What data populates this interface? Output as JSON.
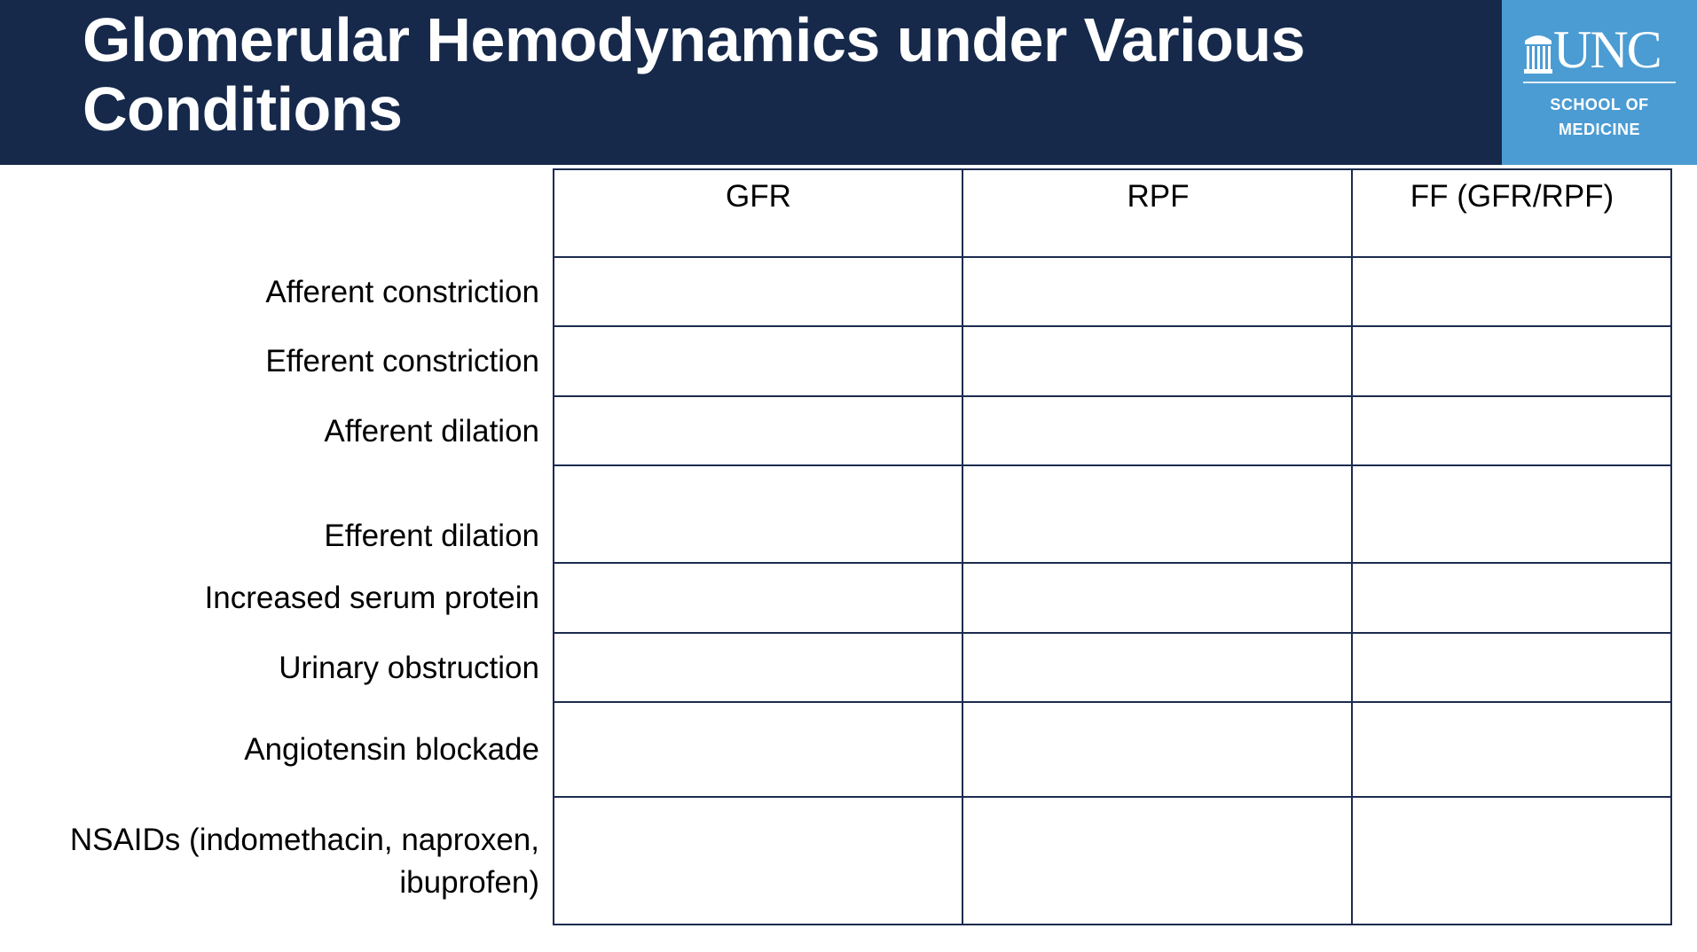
{
  "header": {
    "title_line1": "Glomerular Hemodynamics under Various",
    "title_line2": "Conditions",
    "background_color": "#16294b"
  },
  "logo": {
    "name": "UNC",
    "sub_line1": "SCHOOL OF",
    "sub_line2": "MEDICINE",
    "background_color": "#4b9cd3"
  },
  "table": {
    "columns": [
      "GFR",
      "RPF",
      "FF (GFR/RPF)"
    ],
    "rows": [
      {
        "label": "Afferent constriction"
      },
      {
        "label": "Efferent constriction"
      },
      {
        "label": "Afferent dilation"
      },
      {
        "label": "Efferent dilation"
      },
      {
        "label": "Increased serum protein"
      },
      {
        "label": "Urinary obstruction"
      },
      {
        "label": "Angiotensin blockade"
      },
      {
        "label_line1": "NSAIDs (indomethacin, naproxen,",
        "label_line2": "ibuprofen)"
      }
    ]
  }
}
